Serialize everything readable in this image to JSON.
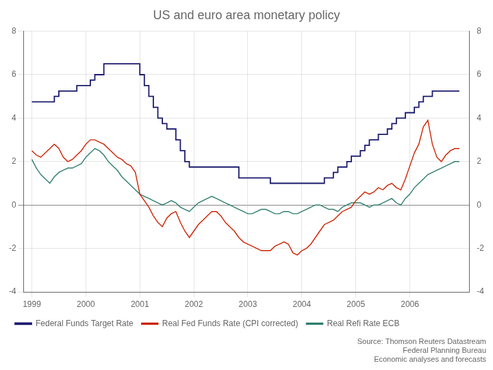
{
  "chart_data": {
    "type": "line",
    "title": "US and euro area monetary policy",
    "annotations": [
      "Source: Thomson Reuters Datastream",
      "Federal Planning Bureau",
      "Economic analyses and forecasts"
    ],
    "x": [
      1999,
      1999.0833333333333,
      1999.1666666666667,
      1999.25,
      1999.3333333333333,
      1999.4166666666667,
      1999.5,
      1999.5833333333333,
      1999.6666666666667,
      1999.75,
      1999.8333333333333,
      1999.9166666666667,
      2000,
      2000.0833333333333,
      2000.1666666666667,
      2000.25,
      2000.3333333333333,
      2000.4166666666667,
      2000.5,
      2000.5833333333333,
      2000.6666666666667,
      2000.75,
      2000.8333333333333,
      2000.9166666666667,
      2001,
      2001.0833333333333,
      2001.1666666666667,
      2001.25,
      2001.3333333333333,
      2001.4166666666667,
      2001.5,
      2001.5833333333333,
      2001.6666666666667,
      2001.75,
      2001.8333333333333,
      2001.9166666666667,
      2002,
      2002.0833333333333,
      2002.1666666666667,
      2002.25,
      2002.3333333333333,
      2002.4166666666667,
      2002.5,
      2002.5833333333333,
      2002.6666666666667,
      2002.75,
      2002.8333333333333,
      2002.9166666666667,
      2003,
      2003.0833333333333,
      2003.1666666666667,
      2003.25,
      2003.3333333333333,
      2003.4166666666667,
      2003.5,
      2003.5833333333333,
      2003.6666666666667,
      2003.75,
      2003.8333333333333,
      2003.9166666666667,
      2004,
      2004.0833333333333,
      2004.1666666666667,
      2004.25,
      2004.3333333333333,
      2004.4166666666667,
      2004.5,
      2004.5833333333333,
      2004.6666666666667,
      2004.75,
      2004.8333333333333,
      2004.9166666666667,
      2005,
      2005.0833333333333,
      2005.1666666666667,
      2005.25,
      2005.3333333333333,
      2005.4166666666667,
      2005.5,
      2005.5833333333333,
      2005.6666666666667,
      2005.75,
      2005.8333333333333,
      2005.9166666666667,
      2006,
      2006.0833333333333,
      2006.1666666666667,
      2006.25,
      2006.3333333333333,
      2006.4166666666667,
      2006.5,
      2006.5833333333333,
      2006.6666666666667,
      2006.75,
      2006.8333333333333,
      2006.9166666666667
    ],
    "series": [
      {
        "name": "Federal Funds Target Rate",
        "color": "#1a1a6e",
        "type": "step",
        "values": [
          4.75,
          4.75,
          4.75,
          4.75,
          4.75,
          5.0,
          5.25,
          5.25,
          5.25,
          5.25,
          5.5,
          5.5,
          5.5,
          5.75,
          6.0,
          6.0,
          6.5,
          6.5,
          6.5,
          6.5,
          6.5,
          6.5,
          6.5,
          6.5,
          6.0,
          5.5,
          5.0,
          4.5,
          4.0,
          3.75,
          3.5,
          3.5,
          3.0,
          2.5,
          2.0,
          1.75,
          1.75,
          1.75,
          1.75,
          1.75,
          1.75,
          1.75,
          1.75,
          1.75,
          1.75,
          1.75,
          1.25,
          1.25,
          1.25,
          1.25,
          1.25,
          1.25,
          1.25,
          1.0,
          1.0,
          1.0,
          1.0,
          1.0,
          1.0,
          1.0,
          1.0,
          1.0,
          1.0,
          1.0,
          1.0,
          1.25,
          1.25,
          1.5,
          1.75,
          1.75,
          2.0,
          2.25,
          2.25,
          2.5,
          2.75,
          3.0,
          3.0,
          3.25,
          3.25,
          3.5,
          3.75,
          4.0,
          4.0,
          4.25,
          4.25,
          4.5,
          4.75,
          5.0,
          5.0,
          5.25,
          5.25,
          5.25,
          5.25,
          5.25,
          5.25,
          5.25
        ]
      },
      {
        "name": "Real Fed Funds Rate (CPI corrected)",
        "color": "#cc2200",
        "type": "line",
        "values": [
          2.5,
          2.3,
          2.2,
          2.4,
          2.6,
          2.8,
          2.6,
          2.2,
          2.0,
          2.1,
          2.3,
          2.5,
          2.8,
          3.0,
          3.0,
          2.9,
          2.8,
          2.6,
          2.4,
          2.2,
          2.1,
          1.9,
          1.8,
          1.5,
          0.5,
          0.2,
          -0.1,
          -0.5,
          -0.8,
          -1.0,
          -0.6,
          -0.4,
          -0.3,
          -0.8,
          -1.2,
          -1.5,
          -1.2,
          -0.9,
          -0.7,
          -0.5,
          -0.3,
          -0.3,
          -0.5,
          -0.8,
          -1.0,
          -1.2,
          -1.5,
          -1.7,
          -1.8,
          -1.9,
          -2.0,
          -2.1,
          -2.1,
          -2.1,
          -1.9,
          -1.8,
          -1.7,
          -1.8,
          -2.2,
          -2.3,
          -2.1,
          -2.0,
          -1.8,
          -1.5,
          -1.2,
          -0.9,
          -0.8,
          -0.7,
          -0.5,
          -0.3,
          -0.2,
          -0.1,
          0.2,
          0.4,
          0.6,
          0.5,
          0.6,
          0.8,
          0.7,
          0.9,
          1.0,
          0.8,
          0.7,
          1.2,
          1.8,
          2.4,
          2.8,
          3.6,
          3.9,
          2.8,
          2.2,
          2.0,
          2.3,
          2.5,
          2.6,
          2.6
        ]
      },
      {
        "name": "Real Refi Rate ECB",
        "color": "#2e7d6e",
        "type": "line",
        "values": [
          2.1,
          1.7,
          1.4,
          1.2,
          1.0,
          1.3,
          1.5,
          1.6,
          1.7,
          1.7,
          1.8,
          1.9,
          2.2,
          2.4,
          2.6,
          2.5,
          2.3,
          2.0,
          1.8,
          1.6,
          1.3,
          1.1,
          0.9,
          0.7,
          0.5,
          0.4,
          0.3,
          0.2,
          0.1,
          0.0,
          0.1,
          0.2,
          0.1,
          -0.1,
          -0.2,
          -0.3,
          -0.1,
          0.1,
          0.2,
          0.3,
          0.4,
          0.3,
          0.2,
          0.1,
          0.0,
          -0.1,
          -0.2,
          -0.3,
          -0.4,
          -0.4,
          -0.3,
          -0.2,
          -0.2,
          -0.3,
          -0.4,
          -0.4,
          -0.3,
          -0.3,
          -0.4,
          -0.4,
          -0.3,
          -0.2,
          -0.1,
          0.0,
          0.0,
          -0.1,
          -0.2,
          -0.2,
          -0.3,
          -0.1,
          0.0,
          0.1,
          0.1,
          0.1,
          0.0,
          -0.1,
          0.0,
          0.0,
          0.1,
          0.2,
          0.3,
          0.1,
          0.0,
          0.3,
          0.5,
          0.8,
          1.0,
          1.2,
          1.4,
          1.5,
          1.6,
          1.7,
          1.8,
          1.9,
          2.0,
          2.0
        ]
      }
    ],
    "xlim": [
      1998.85,
      2007.1
    ],
    "xticks": [
      1999,
      2000,
      2001,
      2002,
      2003,
      2004,
      2005,
      2006
    ],
    "ylim": [
      -4,
      8
    ],
    "yticks": [
      -4,
      -2,
      0,
      2,
      4,
      6,
      8
    ],
    "y2lim": [
      -4,
      8
    ],
    "y2ticks": [
      -4,
      -2,
      0,
      2,
      4,
      6,
      8
    ],
    "grid": true,
    "legend": "bottom"
  }
}
